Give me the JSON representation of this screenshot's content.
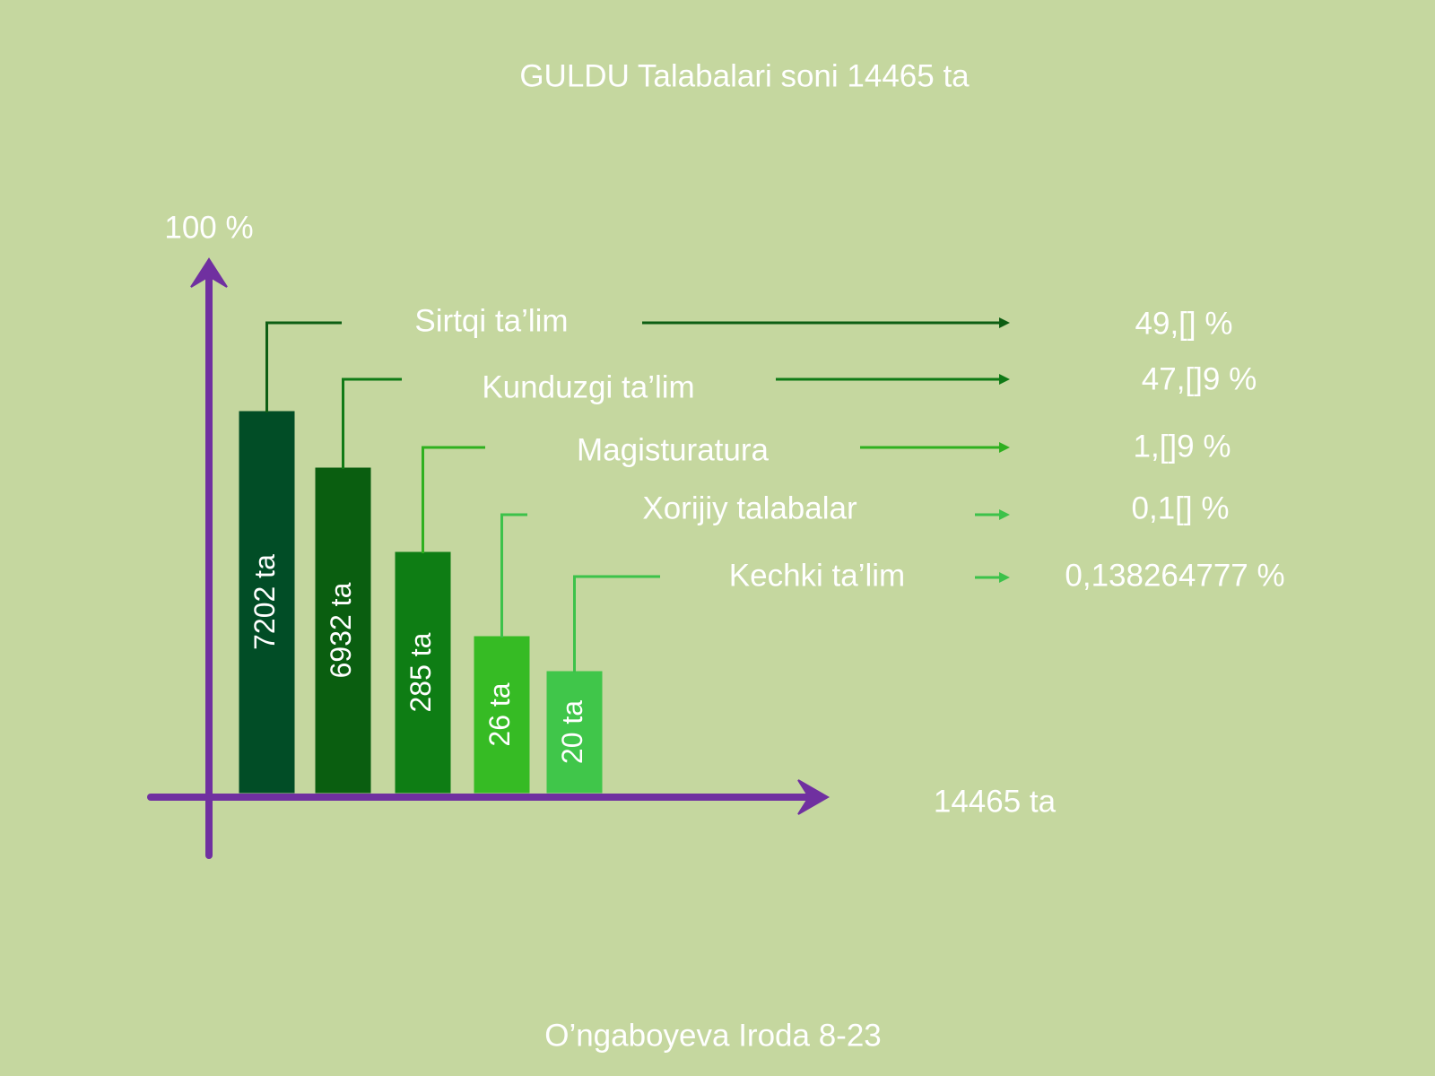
{
  "title": "GULDU  Talabalari  soni  14465 ta",
  "y_axis_label": "100 %",
  "x_axis_label": "14465 ta",
  "rows": [
    {
      "label": "Sirtqi ta’lim",
      "bar_label": "7202 ta",
      "percent": "49,[] %"
    },
    {
      "label": "Kunduzgi ta’lim",
      "bar_label": "6932 ta",
      "percent": "47,[]9 %"
    },
    {
      "label": "Magisturatura",
      "bar_label": "285 ta",
      "percent": "1,[]9 %"
    },
    {
      "label": "Xorijiy talabalar",
      "bar_label": "26 ta",
      "percent": "0,1[] %"
    },
    {
      "label": "Kechki ta’lim",
      "bar_label": "20 ta",
      "percent": "0,138264777 %"
    }
  ],
  "footer": "O’ngaboyeva Iroda 8-23"
}
